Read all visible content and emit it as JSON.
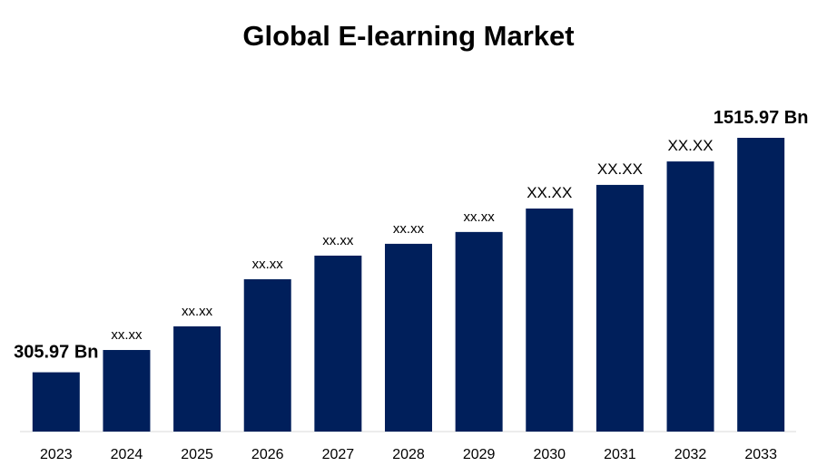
{
  "chart_data": {
    "type": "bar",
    "title": "Global E-learning Market",
    "categories": [
      "2023",
      "2024",
      "2025",
      "2026",
      "2027",
      "2028",
      "2029",
      "2030",
      "2031",
      "2032",
      "2033"
    ],
    "values": [
      305.97,
      421,
      543,
      786,
      908,
      969,
      1030,
      1151,
      1273,
      1394,
      1515.97
    ],
    "value_labels": [
      "305.97 Bn",
      "xx.xx",
      "xx.xx",
      "xx.xx",
      "xx.xx",
      "xx.xx",
      "xx.xx",
      "XX.XX",
      "XX.XX",
      "XX.XX",
      "1515.97 Bn"
    ],
    "color": "#001f5b"
  }
}
